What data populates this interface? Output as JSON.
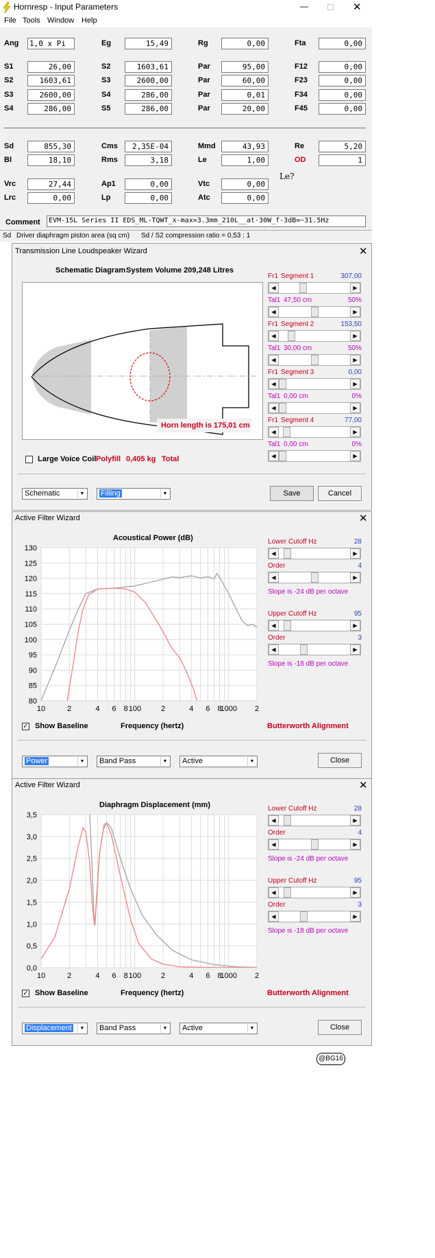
{
  "main": {
    "title": "Hornresp - Input Parameters",
    "menu": [
      "File",
      "Tools",
      "Window",
      "Help"
    ],
    "rows": [
      [
        {
          "l": "Ang",
          "v": "1,0 x Pi"
        },
        {
          "l": "Eg",
          "v": "15,49"
        },
        {
          "l": "Rg",
          "v": "0,00"
        },
        {
          "l": "Fta",
          "v": "0,00"
        }
      ],
      [
        {
          "l": "S1",
          "v": "26,00"
        },
        {
          "l": "S2",
          "v": "1603,61"
        },
        {
          "l": "Par",
          "v": "95,00"
        },
        {
          "l": "F12",
          "v": "0,00"
        }
      ],
      [
        {
          "l": "S2",
          "v": "1603,61"
        },
        {
          "l": "S3",
          "v": "2600,00"
        },
        {
          "l": "Par",
          "v": "60,00"
        },
        {
          "l": "F23",
          "v": "0,00"
        }
      ],
      [
        {
          "l": "S3",
          "v": "2600,00"
        },
        {
          "l": "S4",
          "v": "286,00"
        },
        {
          "l": "Par",
          "v": "0,01"
        },
        {
          "l": "F34",
          "v": "0,00"
        }
      ],
      [
        {
          "l": "S4",
          "v": "286,00"
        },
        {
          "l": "S5",
          "v": "286,00"
        },
        {
          "l": "Par",
          "v": "20,00"
        },
        {
          "l": "F45",
          "v": "0,00"
        }
      ],
      [
        {
          "l": "Sd",
          "v": "855,30"
        },
        {
          "l": "Cms",
          "v": "2,35E-04"
        },
        {
          "l": "Mmd",
          "v": "43,93"
        },
        {
          "l": "Re",
          "v": "5,20"
        }
      ],
      [
        {
          "l": "Bl",
          "v": "18,10"
        },
        {
          "l": "Rms",
          "v": "3,18"
        },
        {
          "l": "Le",
          "v": "1,00"
        },
        {
          "l": "OD",
          "v": "1"
        }
      ],
      [
        {
          "l": "Vrc",
          "v": "27,44"
        },
        {
          "l": "Ap1",
          "v": "0,00"
        },
        {
          "l": "Vtc",
          "v": "0,00"
        }
      ],
      [
        {
          "l": "Lrc",
          "v": "0,00"
        },
        {
          "l": "Lp",
          "v": "0,00"
        },
        {
          "l": "Atc",
          "v": "0,00"
        }
      ]
    ],
    "le_note": "Le?",
    "comment_label": "Comment",
    "comment": "EVM-15L Series II EDS_ML-TQWT_x-max=3.3mm_210L__at-30W_f-3dB=~31.5Hz",
    "status_left": "Sd",
    "status_text": "Driver diaphragm piston area (sq cm)",
    "status_right": "Sd / S2 compression ratio = 0,53 : 1"
  },
  "tl": {
    "title": "Transmission Line Loudspeaker Wizard",
    "diagram_title": "Schematic Diagram",
    "volume": "System Volume 209,248 Litres",
    "horn_length": "Horn length is 175,01 cm",
    "large_voice_coil": "Large Voice Coil",
    "polyfill": "Polyfill",
    "polyfill_val": "0,405 kg",
    "total": "Total",
    "segments": [
      {
        "fr": "Fr1",
        "name": "Segment 1",
        "val": "307,00",
        "tal": "Tal1",
        "tval": "47,50 cm",
        "pct": "50%",
        "pos": 0.32,
        "tpos": 0.5
      },
      {
        "fr": "Fr1",
        "name": "Segment 2",
        "val": "153,50",
        "tal": "Tal1",
        "tval": "30,00 cm",
        "pct": "50%",
        "pos": 0.14,
        "tpos": 0.5
      },
      {
        "fr": "Fr1",
        "name": "Segment 3",
        "val": "0,00",
        "tal": "Tal1",
        "tval": "0,00 cm",
        "pct": "0%",
        "pos": 0,
        "tpos": 0
      },
      {
        "fr": "Fr1",
        "name": "Segment 4",
        "val": "77,00",
        "tal": "Tal1",
        "tval": "0,00 cm",
        "pct": "0%",
        "pos": 0.06,
        "tpos": 0
      }
    ],
    "combo1": "Schematic",
    "combo2": "Filling",
    "save": "Save",
    "cancel": "Cancel"
  },
  "af1": {
    "title": "Active Filter Wizard",
    "chart_title": "Acoustical Power (dB)",
    "xlabel": "Frequency (hertz)",
    "show_baseline": "Show Baseline",
    "alignment": "Butterworth Alignment",
    "lower": {
      "label": "Lower Cutoff  Hz",
      "val": "28",
      "order": "Order",
      "order_val": "4",
      "slope": "Slope is -24 dB per octave",
      "pos": 0.08,
      "opos": 0.5
    },
    "upper": {
      "label": "Upper Cutoff  Hz",
      "val": "95",
      "order": "Order",
      "order_val": "3",
      "slope": "Slope is -18 dB per octave",
      "pos": 0.08,
      "opos": 0.33
    },
    "combos": [
      "Power",
      "Band Pass",
      "Active"
    ],
    "close": "Close"
  },
  "af2": {
    "title": "Active Filter Wizard",
    "chart_title": "Diaphragm Displacement (mm)",
    "xlabel": "Frequency (hertz)",
    "show_baseline": "Show Baseline",
    "alignment": "Butterworth Alignment",
    "lower": {
      "label": "Lower Cutoff  Hz",
      "val": "28",
      "order": "Order",
      "order_val": "4",
      "slope": "Slope is -24 dB per octave",
      "pos": 0.08,
      "opos": 0.5
    },
    "upper": {
      "label": "Upper Cutoff  Hz",
      "val": "95",
      "order": "Order",
      "order_val": "3",
      "slope": "Slope is -18 dB per octave",
      "pos": 0.08,
      "opos": 0.33
    },
    "combos": [
      "Displacement",
      "Band Pass",
      "Active"
    ],
    "close": "Close"
  },
  "chart_data": [
    {
      "type": "line",
      "title": "Acoustical Power (dB)",
      "xlabel": "Frequency (hertz)",
      "ylabel": "",
      "xscale": "log",
      "xlim": [
        10,
        2000
      ],
      "ylim": [
        80,
        130
      ],
      "x_tick_labels": [
        "10",
        "2",
        "4",
        "6",
        "8",
        "100",
        "2",
        "4",
        "6",
        "8",
        "1000",
        "2"
      ],
      "y_ticks": [
        80,
        85,
        90,
        95,
        100,
        105,
        110,
        115,
        120,
        125,
        130
      ],
      "series": [
        {
          "color": "#a8a8a8",
          "points": [
            [
              10,
              80
            ],
            [
              15,
              93
            ],
            [
              20,
              103
            ],
            [
              25,
              110
            ],
            [
              30,
              115
            ],
            [
              40,
              116.5
            ],
            [
              60,
              116.8
            ],
            [
              100,
              117.5
            ],
            [
              150,
              118.8
            ],
            [
              200,
              119.7
            ],
            [
              250,
              120.5
            ],
            [
              300,
              120.2
            ],
            [
              400,
              120.8
            ],
            [
              500,
              120.1
            ],
            [
              600,
              120.5
            ],
            [
              700,
              119.8
            ],
            [
              750,
              121.6
            ],
            [
              800,
              120.2
            ],
            [
              900,
              117.6
            ],
            [
              1000,
              115
            ],
            [
              1200,
              110
            ],
            [
              1400,
              106
            ],
            [
              1600,
              104.5
            ],
            [
              1800,
              105
            ],
            [
              2000,
              104
            ]
          ]
        },
        {
          "color": "#f08a8a",
          "points": [
            [
              19,
              80
            ],
            [
              22,
              92
            ],
            [
              25,
              103
            ],
            [
              28,
              110
            ],
            [
              32,
              114.5
            ],
            [
              40,
              116.5
            ],
            [
              60,
              116.8
            ],
            [
              80,
              116.5
            ],
            [
              100,
              115.5
            ],
            [
              130,
              112
            ],
            [
              180,
              105
            ],
            [
              250,
              97
            ],
            [
              300,
              94
            ],
            [
              350,
              90
            ],
            [
              420,
              84
            ],
            [
              460,
              80
            ]
          ]
        }
      ]
    },
    {
      "type": "line",
      "title": "Diaphragm Displacement (mm)",
      "xlabel": "Frequency (hertz)",
      "ylabel": "",
      "xscale": "log",
      "xlim": [
        10,
        2000
      ],
      "ylim": [
        0,
        3.5
      ],
      "x_tick_labels": [
        "10",
        "2",
        "4",
        "6",
        "8",
        "100",
        "2",
        "4",
        "6",
        "8",
        "1000",
        "2"
      ],
      "y_ticks": [
        "0,0",
        "0,5",
        "1,0",
        "1,5",
        "2,0",
        "2,5",
        "3,0",
        "3,5"
      ],
      "series": [
        {
          "color": "#a8a8a8",
          "points": [
            [
              33,
              3.5
            ],
            [
              35,
              2.3
            ],
            [
              36.5,
              1.2
            ],
            [
              37.5,
              0.97
            ],
            [
              39,
              1.6
            ],
            [
              42,
              2.6
            ],
            [
              46,
              3.15
            ],
            [
              50,
              3.32
            ],
            [
              56,
              3.2
            ],
            [
              70,
              2.5
            ],
            [
              90,
              1.8
            ],
            [
              120,
              1.2
            ],
            [
              170,
              0.75
            ],
            [
              250,
              0.4
            ],
            [
              400,
              0.18
            ],
            [
              700,
              0.07
            ],
            [
              1200,
              0.02
            ],
            [
              2000,
              0.01
            ]
          ]
        },
        {
          "color": "#f08a8a",
          "points": [
            [
              10,
              0.2
            ],
            [
              14,
              0.7
            ],
            [
              20,
              1.8
            ],
            [
              25,
              2.8
            ],
            [
              28,
              3.2
            ],
            [
              30,
              3.1
            ],
            [
              33,
              2.4
            ],
            [
              35,
              1.5
            ],
            [
              37,
              0.97
            ],
            [
              39,
              1.5
            ],
            [
              42,
              2.6
            ],
            [
              47,
              3.28
            ],
            [
              50,
              3.3
            ],
            [
              56,
              3.05
            ],
            [
              70,
              2.1
            ],
            [
              90,
              1.1
            ],
            [
              110,
              0.55
            ],
            [
              150,
              0.2
            ],
            [
              200,
              0.08
            ],
            [
              300,
              0.02
            ],
            [
              500,
              0.01
            ],
            [
              2000,
              0.0
            ]
          ]
        }
      ]
    }
  ],
  "footer": "@BG16"
}
